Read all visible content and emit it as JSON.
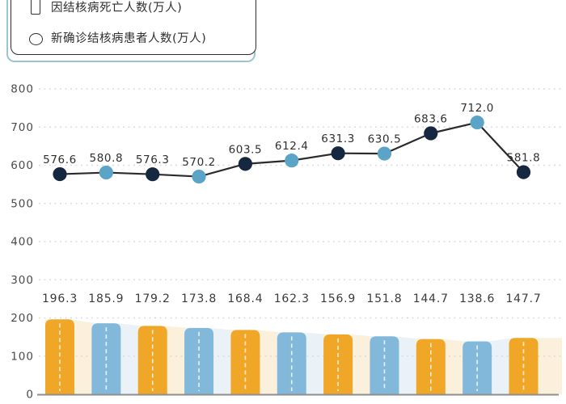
{
  "legend": {
    "items": [
      {
        "id": "tb-deaths",
        "icon": "bar-icon",
        "label": "因结核病死亡人数(万人)"
      },
      {
        "id": "tb-new-cases",
        "icon": "circle-icon",
        "label": "新确诊结核病患者人数(万人)"
      }
    ]
  },
  "chart_data": {
    "type": "combo",
    "title": "",
    "xlabel": "",
    "ylabel": "",
    "ylim": [
      0,
      800
    ],
    "yticks": [
      0,
      100,
      200,
      300,
      400,
      500,
      600,
      700,
      800
    ],
    "grid": "horizontal-dashed",
    "legend_position": "top-left",
    "n_points": 11,
    "series": [
      {
        "name": "因结核病死亡人数(万人)",
        "type": "bar",
        "values": [
          196.3,
          185.9,
          179.2,
          173.8,
          168.4,
          162.3,
          156.9,
          151.8,
          144.7,
          138.6,
          147.7
        ],
        "labels": [
          "196.3",
          "185.9",
          "179.2",
          "173.8",
          "168.4",
          "162.3",
          "156.9",
          "151.8",
          "144.7",
          "138.6",
          "147.7"
        ]
      },
      {
        "name": "新确诊结核病患者人数(万人)",
        "type": "line",
        "values": [
          576.6,
          580.8,
          576.3,
          570.2,
          603.5,
          612.4,
          631.3,
          630.5,
          683.6,
          712.0,
          581.8
        ],
        "labels": [
          "576.6",
          "580.8",
          "576.3",
          "570.2",
          "603.5",
          "612.4",
          "631.3",
          "630.5",
          "683.6",
          "712.0",
          "581.8"
        ]
      }
    ],
    "colors": {
      "bar_orange": "#F0A727",
      "bar_blue": "#82B9DA",
      "band_cream": "#FAF0DB",
      "band_pale_blue": "#EAF2F8",
      "dot_dark_navy": "#16283F",
      "dot_light_blue": "#5BA4C7",
      "line_dark": "#2B2B2B",
      "gridline_gray": "#DCDCDC",
      "axis_gray": "#8E8E8E",
      "text_dark": "#3A3A3A",
      "bar_dash_white": "#FFFFFF"
    }
  }
}
